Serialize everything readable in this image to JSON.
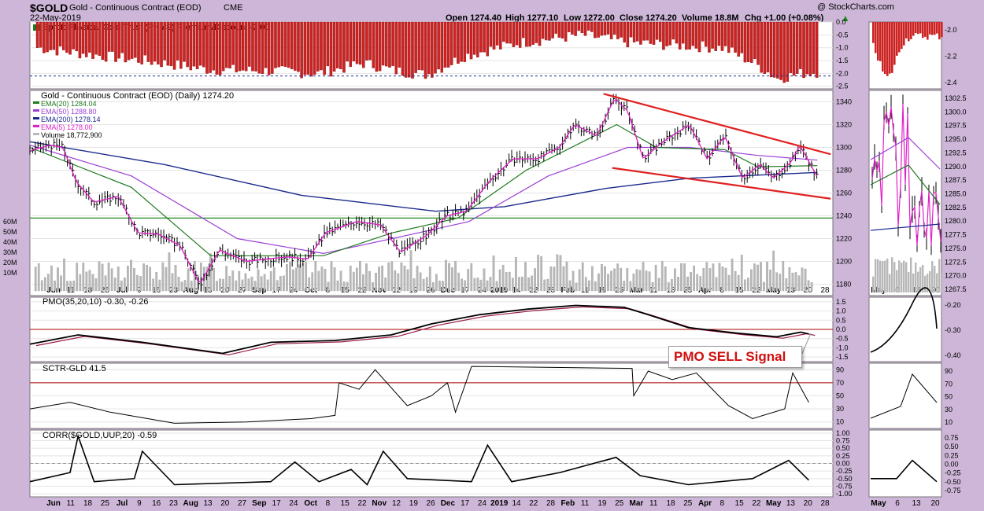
{
  "header": {
    "symbol": "$GOLD",
    "name": "Gold - Continuous Contract (EOD)",
    "exchange": "CME",
    "date": "22-May-2019",
    "credit": "@ StockCharts.com",
    "open": "Open 1274.40",
    "high": "High 1277.10",
    "low": "Low 1272.00",
    "close": "Close 1274.20",
    "volume": "Volume 18.8M",
    "chg": "Chg +1.00 (+0.08%)",
    "chg_symbol": "▲"
  },
  "colors": {
    "background": "#cdb6d8",
    "panel": "#ffffff",
    "premium_bar": "#cc2222",
    "ema20": "#1e7a1e",
    "ema50": "#9b3fd6",
    "ema200": "#1c2a8c",
    "ema5": "#e020c8",
    "volume": "#b8b8b8",
    "trendline": "#e02020",
    "support": "#1e8a1e",
    "signal": "#d01010"
  },
  "chart_data": [
    {
      "type": "bar",
      "panel": "premium",
      "title": "Sprott Physical Gold Trust (PHYS) Premium/Discount -2.00",
      "yticks": [
        "0.0",
        "-0.5",
        "-1.0",
        "-1.5",
        "-2.0",
        "-2.5"
      ],
      "yticks_right": [
        "-2.0",
        "-2.2",
        "-2.4"
      ],
      "ylim": [
        -2.6,
        0.0
      ],
      "reference_line": -2.1,
      "note": "daily premium/discount values, negative"
    },
    {
      "type": "line",
      "panel": "price",
      "title": "Gold - Continuous Contract (EOD) (Daily) 1274.20",
      "legend": [
        {
          "name": "EMA(20) 1284.04",
          "color_key": "ema20"
        },
        {
          "name": "EMA(50) 1288.80",
          "color_key": "ema50"
        },
        {
          "name": "EMA(200) 1278.14",
          "color_key": "ema200"
        },
        {
          "name": "EMA(5) 1278.00",
          "color_key": "ema5"
        },
        {
          "name": "Volume 18,772,900",
          "color_key": "volume"
        }
      ],
      "yticks": [
        "1340",
        "1320",
        "1300",
        "1280",
        "1260",
        "1240",
        "1220",
        "1200",
        "1180"
      ],
      "yticks_right": [
        "1302.5",
        "1300.0",
        "1297.5",
        "1295.0",
        "1292.5",
        "1290.0",
        "1287.5",
        "1285.0",
        "1282.5",
        "1280.0",
        "1277.5",
        "1275.0",
        "1272.5",
        "1270.0",
        "1267.5"
      ],
      "volume_ticks": [
        "60M",
        "50M",
        "40M",
        "30M",
        "20M",
        "10M"
      ],
      "ylim": [
        1170,
        1350
      ],
      "support_level": 1238,
      "trendlines": [
        {
          "name": "upper",
          "x1": "2019-02-14",
          "y1": 1347,
          "x2": "2019-05-28",
          "y2": 1294
        },
        {
          "name": "lower",
          "x1": "2019-02-18",
          "y1": 1282,
          "x2": "2019-05-28",
          "y2": 1255
        }
      ],
      "close_points": [
        [
          "2018-05-30",
          1297
        ],
        [
          "2018-06-08",
          1302
        ],
        [
          "2018-06-14",
          1300
        ],
        [
          "2018-06-20",
          1270
        ],
        [
          "2018-06-28",
          1252
        ],
        [
          "2018-07-09",
          1257
        ],
        [
          "2018-07-18",
          1225
        ],
        [
          "2018-07-27",
          1224
        ],
        [
          "2018-08-06",
          1214
        ],
        [
          "2018-08-15",
          1180
        ],
        [
          "2018-08-24",
          1210
        ],
        [
          "2018-09-05",
          1200
        ],
        [
          "2018-09-14",
          1202
        ],
        [
          "2018-09-24",
          1204
        ],
        [
          "2018-10-03",
          1202
        ],
        [
          "2018-10-11",
          1225
        ],
        [
          "2018-10-25",
          1235
        ],
        [
          "2018-11-05",
          1232
        ],
        [
          "2018-11-14",
          1208
        ],
        [
          "2018-11-26",
          1223
        ],
        [
          "2018-12-05",
          1240
        ],
        [
          "2018-12-14",
          1244
        ],
        [
          "2018-12-24",
          1270
        ],
        [
          "2019-01-04",
          1290
        ],
        [
          "2019-01-15",
          1290
        ],
        [
          "2019-01-25",
          1300
        ],
        [
          "2019-02-01",
          1320
        ],
        [
          "2019-02-11",
          1310
        ],
        [
          "2019-02-19",
          1343
        ],
        [
          "2019-02-25",
          1332
        ],
        [
          "2019-03-04",
          1290
        ],
        [
          "2019-03-13",
          1305
        ],
        [
          "2019-03-25",
          1320
        ],
        [
          "2019-04-02",
          1290
        ],
        [
          "2019-04-10",
          1310
        ],
        [
          "2019-04-18",
          1273
        ],
        [
          "2019-04-26",
          1285
        ],
        [
          "2019-05-02",
          1273
        ],
        [
          "2019-05-10",
          1287
        ],
        [
          "2019-05-14",
          1302
        ],
        [
          "2019-05-22",
          1274
        ]
      ],
      "ema_points": {
        "ema20": [
          [
            "2018-05-30",
            1300
          ],
          [
            "2018-07-15",
            1265
          ],
          [
            "2018-08-20",
            1205
          ],
          [
            "2018-10-10",
            1205
          ],
          [
            "2018-11-10",
            1225
          ],
          [
            "2018-12-10",
            1238
          ],
          [
            "2019-01-10",
            1280
          ],
          [
            "2019-02-20",
            1320
          ],
          [
            "2019-03-10",
            1300
          ],
          [
            "2019-04-10",
            1298
          ],
          [
            "2019-04-25",
            1283
          ],
          [
            "2019-05-22",
            1284
          ]
        ],
        "ema50": [
          [
            "2018-05-30",
            1302
          ],
          [
            "2018-07-15",
            1275
          ],
          [
            "2018-09-01",
            1220
          ],
          [
            "2018-10-10",
            1207
          ],
          [
            "2018-11-15",
            1222
          ],
          [
            "2018-12-15",
            1235
          ],
          [
            "2019-01-20",
            1275
          ],
          [
            "2019-02-25",
            1300
          ],
          [
            "2019-03-25",
            1300
          ],
          [
            "2019-04-25",
            1293
          ],
          [
            "2019-05-22",
            1288.8
          ]
        ],
        "ema200": [
          [
            "2018-05-30",
            1305
          ],
          [
            "2018-07-30",
            1285
          ],
          [
            "2018-09-30",
            1258
          ],
          [
            "2018-11-30",
            1244
          ],
          [
            "2018-12-31",
            1248
          ],
          [
            "2019-02-15",
            1264
          ],
          [
            "2019-03-25",
            1273
          ],
          [
            "2019-05-22",
            1278.1
          ]
        ]
      }
    },
    {
      "type": "line",
      "panel": "pmo",
      "title": "PMO(35,20,10) -0.30, -0.26",
      "yticks": [
        "1.5",
        "1.0",
        "0.5",
        "0.0",
        "-0.5",
        "-1.0",
        "-1.5"
      ],
      "yticks_right": [
        "-0.20",
        "-0.30",
        "-0.40"
      ],
      "ylim": [
        -1.75,
        1.75
      ],
      "annotation": "PMO SELL Signal"
    },
    {
      "type": "line",
      "panel": "sctr",
      "title": "SCTR-GLD 41.5",
      "yticks": [
        "90",
        "70",
        "50",
        "30",
        "10"
      ],
      "yticks_right": [
        "90",
        "70",
        "50",
        "30",
        "10"
      ],
      "ylim": [
        0,
        100
      ],
      "reference_line": 70
    },
    {
      "type": "line",
      "panel": "corr",
      "title": "CORR($GOLD,UUP,20) -0.59",
      "yticks": [
        "1.00",
        "0.75",
        "0.50",
        "0.25",
        "0.00",
        "-0.25",
        "-0.50",
        "-0.75",
        "-1.00"
      ],
      "yticks_right": [
        "0.75",
        "0.50",
        "0.25",
        "0.00",
        "-0.25",
        "-0.50",
        "-0.75"
      ],
      "ylim": [
        -1.1,
        1.1
      ]
    }
  ],
  "xaxis": {
    "labels": [
      "Jun",
      "11",
      "18",
      "25",
      "Jul",
      "9",
      "16",
      "23",
      "Aug",
      "13",
      "20",
      "27",
      "Sep",
      "17",
      "24",
      "Oct",
      "8",
      "15",
      "22",
      "Nov",
      "12",
      "19",
      "26",
      "Dec",
      "17",
      "24",
      "2019",
      "14",
      "22",
      "28",
      "Feb",
      "11",
      "19",
      "25",
      "Mar",
      "11",
      "18",
      "25",
      "Apr",
      "8",
      "15",
      "22",
      "May",
      "13",
      "20",
      "28"
    ],
    "right_labels": [
      "May",
      "6",
      "13",
      "20"
    ]
  }
}
